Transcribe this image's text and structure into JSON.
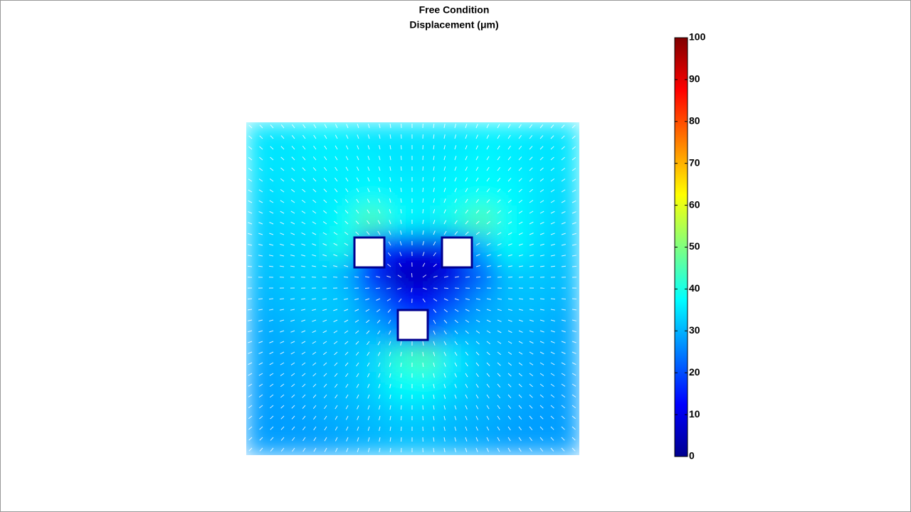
{
  "chart_data": {
    "type": "heatmap",
    "title": "Free Condition",
    "subtitle": "Displacement (μm)",
    "colormap": "jet",
    "clim": [
      0,
      100
    ],
    "cticks": [
      0,
      10,
      20,
      30,
      40,
      50,
      60,
      70,
      80,
      90,
      100
    ],
    "z": [
      [
        35,
        35,
        36,
        36,
        35,
        35,
        35,
        35,
        36,
        36,
        35,
        35
      ],
      [
        35,
        35,
        36,
        36,
        36,
        35,
        35,
        36,
        37,
        36,
        35,
        35
      ],
      [
        34,
        35,
        35,
        36,
        37,
        36,
        36,
        37,
        38,
        37,
        35,
        34
      ],
      [
        33,
        34,
        35,
        38,
        45,
        38,
        36,
        40,
        45,
        38,
        35,
        33
      ],
      [
        32,
        33,
        34,
        40,
        20,
        12,
        10,
        15,
        30,
        38,
        34,
        32
      ],
      [
        31,
        32,
        33,
        30,
        15,
        6,
        5,
        10,
        22,
        32,
        32,
        31
      ],
      [
        30,
        31,
        32,
        32,
        25,
        15,
        12,
        20,
        28,
        31,
        31,
        30
      ],
      [
        29,
        30,
        31,
        31,
        30,
        25,
        20,
        28,
        30,
        30,
        30,
        29
      ],
      [
        29,
        29,
        30,
        31,
        33,
        42,
        45,
        36,
        31,
        30,
        29,
        29
      ],
      [
        28,
        29,
        30,
        31,
        33,
        38,
        38,
        34,
        31,
        30,
        29,
        28
      ],
      [
        28,
        28,
        29,
        30,
        31,
        33,
        33,
        31,
        30,
        29,
        28,
        28
      ],
      [
        28,
        28,
        28,
        29,
        30,
        31,
        31,
        30,
        29,
        28,
        28,
        28
      ]
    ]
  }
}
